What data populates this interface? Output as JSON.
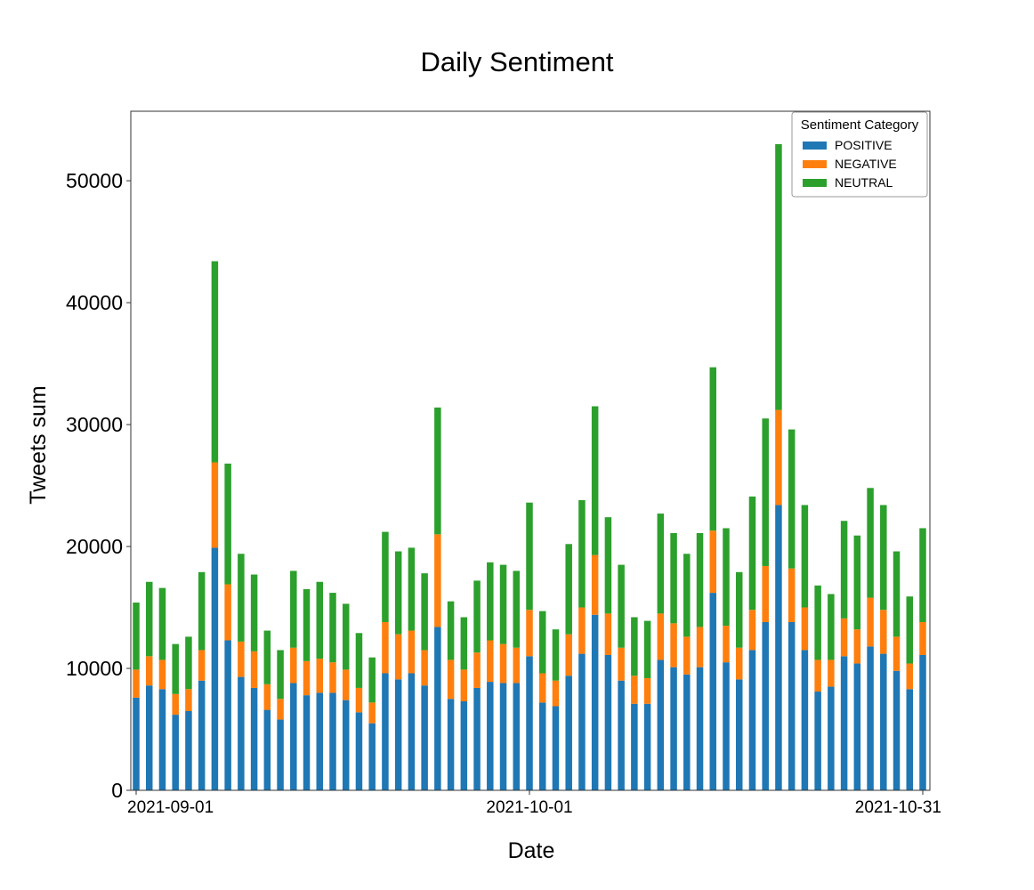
{
  "chart_data": {
    "type": "bar",
    "stacked": true,
    "title": "Daily Sentiment",
    "xlabel": "Date",
    "ylabel": "Tweets sum",
    "ylim": [
      0,
      55700
    ],
    "yticks": [
      0,
      10000,
      20000,
      30000,
      40000,
      50000
    ],
    "ytick_labels": [
      "0",
      "10000",
      "20000",
      "30000",
      "40000",
      "50000"
    ],
    "xtick_labels": [
      {
        "date": "2021-09-01",
        "label": "2021-09-01"
      },
      {
        "date": "2021-10-01",
        "label": "2021-10-01"
      },
      {
        "date": "2021-10-31",
        "label": "2021-10-31"
      }
    ],
    "grid": false,
    "legend": {
      "title": "Sentiment Category",
      "placement": "top-right"
    },
    "categories_start": "2021-09-01",
    "categories_end": "2021-10-31",
    "series": [
      {
        "name": "POSITIVE",
        "color": "#1f77b4",
        "values": [
          7600,
          8600,
          8300,
          6200,
          6500,
          9000,
          19900,
          12300,
          9300,
          8400,
          6600,
          5800,
          8800,
          7800,
          8000,
          8000,
          7400,
          6400,
          5500,
          9600,
          9100,
          9600,
          8600,
          13400,
          7500,
          7300,
          8400,
          8900,
          8800,
          8800,
          11000,
          7200,
          6900,
          9400,
          11200,
          14400,
          11100,
          9000,
          7100,
          7100,
          10700,
          10100,
          9500,
          10100,
          16200,
          10500,
          9100,
          11500,
          13800,
          23400,
          13800,
          11500,
          8100,
          8500,
          11000,
          10400,
          11800,
          11200,
          9800,
          8300,
          11100
        ]
      },
      {
        "name": "NEGATIVE",
        "color": "#ff7f0e",
        "values": [
          2300,
          2400,
          2400,
          1700,
          1800,
          2500,
          7000,
          4600,
          2900,
          3000,
          2100,
          1700,
          2900,
          2800,
          2800,
          2500,
          2500,
          2000,
          1700,
          4200,
          3700,
          3500,
          2900,
          7600,
          3200,
          2600,
          2900,
          3400,
          3200,
          2900,
          3800,
          2400,
          2100,
          3400,
          3800,
          4900,
          3400,
          2700,
          2300,
          2100,
          3800,
          3600,
          3100,
          3300,
          5100,
          3000,
          2600,
          3300,
          4600,
          7800,
          4400,
          3500,
          2600,
          2200,
          3100,
          2800,
          4000,
          3600,
          2800,
          2100,
          2700
        ]
      },
      {
        "name": "NEUTRAL",
        "color": "#2ca02c",
        "values": [
          5500,
          6100,
          5900,
          4100,
          4300,
          6400,
          16500,
          9900,
          7200,
          6300,
          4400,
          4000,
          6300,
          5900,
          6300,
          5700,
          5400,
          4500,
          3700,
          7400,
          6800,
          6800,
          6300,
          10400,
          4800,
          4300,
          5900,
          6400,
          6500,
          6300,
          8800,
          5100,
          4200,
          7400,
          8800,
          12200,
          7900,
          6800,
          4800,
          4700,
          8200,
          7400,
          6800,
          7700,
          13400,
          8000,
          6200,
          9300,
          12100,
          21800,
          11400,
          8400,
          6100,
          5400,
          8000,
          7700,
          9000,
          8600,
          7000,
          5500,
          7700
        ]
      }
    ]
  }
}
